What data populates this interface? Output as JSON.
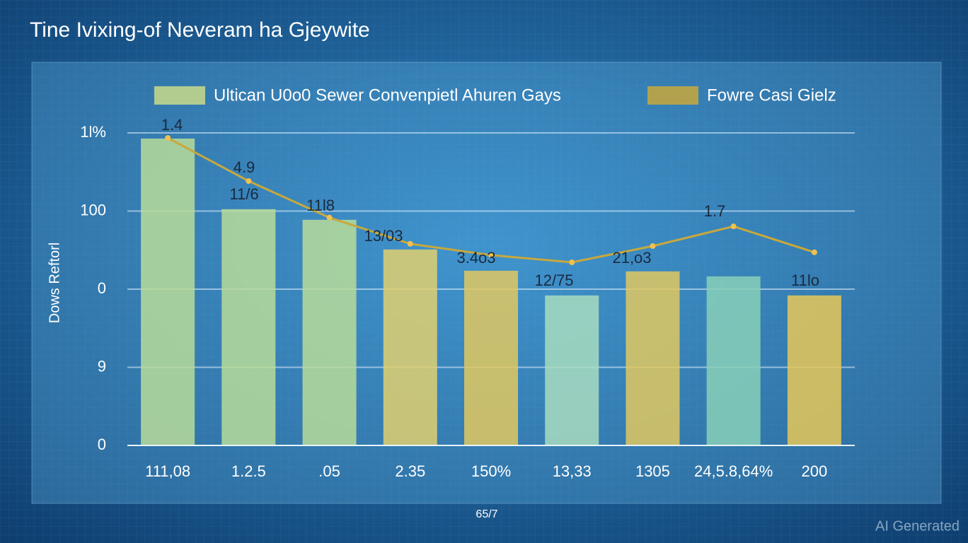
{
  "chart_data": {
    "type": "bar",
    "title": "Tine Ivixing-of Neveram ha Gjeywite",
    "y_label": "Dows Reftorl",
    "x_label": "65/7",
    "watermark": "AI Generated",
    "categories": [
      "111,08",
      "1.2.5",
      ".05",
      "2.35",
      "150%",
      "13,33",
      "1305",
      "24,5.8,64%",
      "200"
    ],
    "series": [
      {
        "name": "Ultican U0o0 Sewer Convenpietl Ahuren Gays",
        "color": "#c9d98a",
        "colors": [
          "#b8dc9a",
          "#b8dc9a",
          "#b8dc9a",
          "#e0d070",
          "#e0c860",
          "#a8dcc0",
          "#e0c860",
          "#88d0b8",
          "#e6c858"
        ],
        "values": [
          98.2,
          75.6,
          72.2,
          62.7,
          55.9,
          48,
          55.7,
          54.1,
          48
        ]
      },
      {
        "name": "Fowre Casi Gielz",
        "color": "#c8a83c",
        "type": "line",
        "values": [
          98.4,
          84.6,
          72.9,
          64.5,
          60.9,
          58.6,
          63.8,
          70.1,
          61.8
        ]
      }
    ],
    "annotations": [
      "1.4",
      "4.9",
      "11/6",
      "11l8",
      "13/03",
      "3.4o3",
      "12/75",
      "21,o3",
      "1.7",
      "11lo"
    ],
    "ylim": [
      0,
      100
    ],
    "yticks": [
      0,
      {
        "value": 25,
        "label": "9"
      },
      {
        "value": 50,
        "label": "0"
      },
      {
        "value": 75,
        "label": "100"
      },
      {
        "value": 100,
        "label": "1l%"
      }
    ],
    "grid": true
  }
}
